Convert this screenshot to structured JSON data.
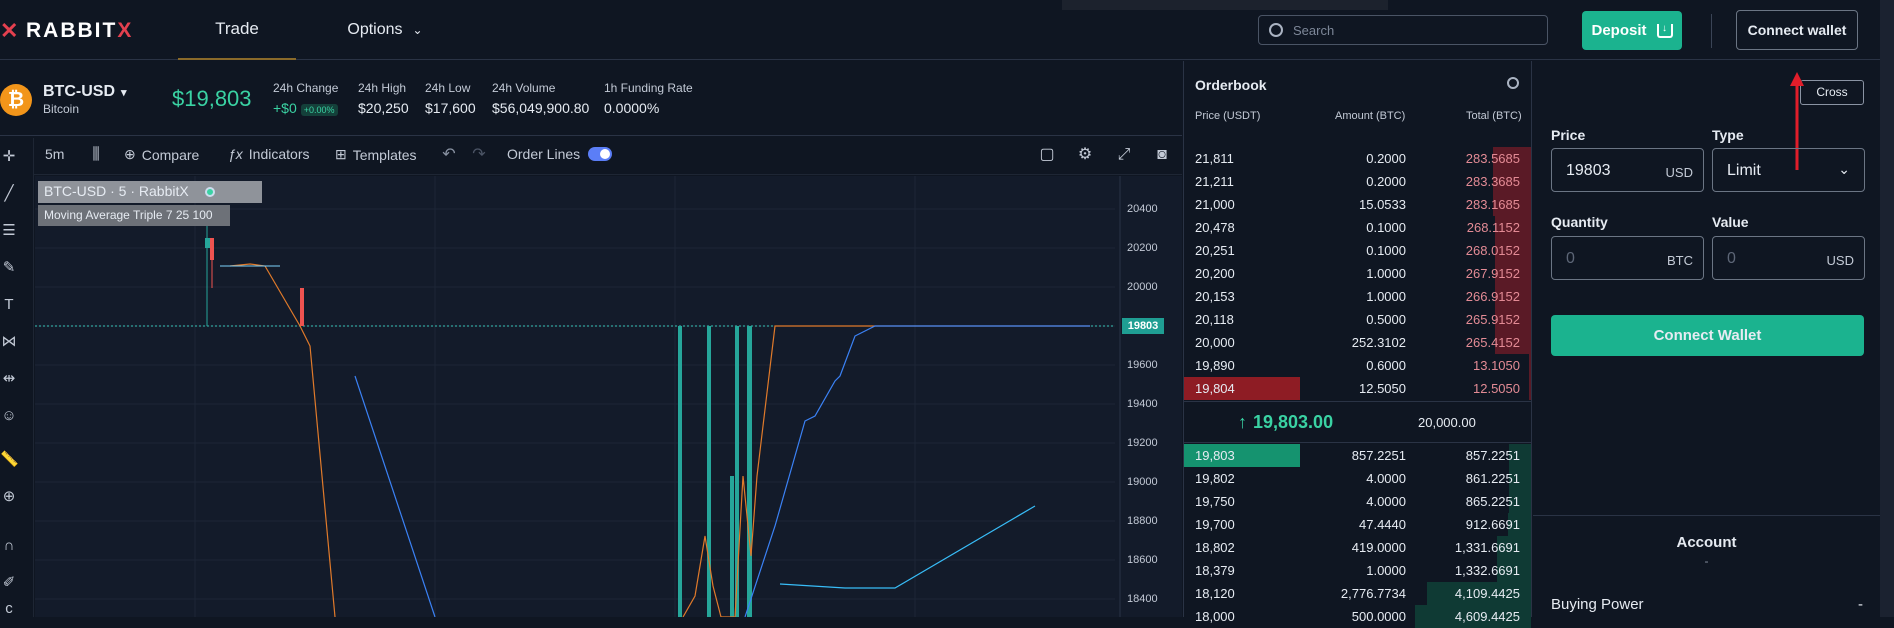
{
  "header": {
    "logo_text_main": "RABBIT",
    "logo_text_x": "X",
    "tabs": [
      {
        "label": "Trade"
      },
      {
        "label": "Options"
      }
    ],
    "search_placeholder": "Search",
    "deposit_label": "Deposit",
    "connect_wallet_label": "Connect wallet"
  },
  "market": {
    "pair": "BTC-USD",
    "pair_name": "Bitcoin",
    "last_price": "$19,803",
    "stats": [
      {
        "label": "24h Change",
        "value": "+$0",
        "badge": "+0.00%"
      },
      {
        "label": "24h High",
        "value": "$20,250"
      },
      {
        "label": "24h Low",
        "value": "$17,600"
      },
      {
        "label": "24h Volume",
        "value": "$56,049,900.80"
      },
      {
        "label": "1h Funding Rate",
        "value": "0.0000%"
      }
    ]
  },
  "chart_toolbar": {
    "interval": "5m",
    "compare": "Compare",
    "indicators": "Indicators",
    "templates": "Templates",
    "order_lines": "Order Lines"
  },
  "chart": {
    "legend_title": "BTC-USD · 5 · RabbitX",
    "legend_indicator": "Moving Average Triple 7 25 100",
    "last_price_tag": "19803",
    "y_ticks": [
      "20400",
      "20200",
      "20000",
      "19800",
      "19600",
      "19400",
      "19200",
      "19000",
      "18800",
      "18600",
      "18400"
    ]
  },
  "chart_data": {
    "type": "line",
    "y_axis_ticks": [
      20400,
      20200,
      20000,
      19800,
      19600,
      19400,
      19200,
      19000,
      18800,
      18600,
      18400
    ],
    "last_price": 19803
  },
  "orderbook": {
    "title": "Orderbook",
    "headers": {
      "price": "Price (USDT)",
      "amount": "Amount (BTC)",
      "total": "Total (BTC)"
    },
    "asks": [
      {
        "price": "21,811",
        "amount": "0.2000",
        "total": "283.5685",
        "depth": 0.33
      },
      {
        "price": "21,211",
        "amount": "0.2000",
        "total": "283.3685",
        "depth": 0.33
      },
      {
        "price": "21,000",
        "amount": "15.0533",
        "total": "283.1685",
        "depth": 0.33
      },
      {
        "price": "20,478",
        "amount": "0.1000",
        "total": "268.1152",
        "depth": 0.31
      },
      {
        "price": "20,251",
        "amount": "0.1000",
        "total": "268.0152",
        "depth": 0.31
      },
      {
        "price": "20,200",
        "amount": "1.0000",
        "total": "267.9152",
        "depth": 0.31
      },
      {
        "price": "20,153",
        "amount": "1.0000",
        "total": "266.9152",
        "depth": 0.31
      },
      {
        "price": "20,118",
        "amount": "0.5000",
        "total": "265.9152",
        "depth": 0.31
      },
      {
        "price": "20,000",
        "amount": "252.3102",
        "total": "265.4152",
        "depth": 0.31
      },
      {
        "price": "19,890",
        "amount": "0.6000",
        "total": "13.1050",
        "depth": 0.015
      },
      {
        "price": "19,804",
        "amount": "12.5050",
        "total": "12.5050",
        "depth": 0.015
      }
    ],
    "mid": {
      "price": "19,803.00",
      "total": "20,000.00"
    },
    "bids": [
      {
        "price": "19,803",
        "amount": "857.2251",
        "total": "857.2251",
        "depth": 0.19
      },
      {
        "price": "19,802",
        "amount": "4.0000",
        "total": "861.2251",
        "depth": 0.19
      },
      {
        "price": "19,750",
        "amount": "4.0000",
        "total": "865.2251",
        "depth": 0.19
      },
      {
        "price": "19,700",
        "amount": "47.4440",
        "total": "912.6691",
        "depth": 0.2
      },
      {
        "price": "18,802",
        "amount": "419.0000",
        "total": "1,331.6691",
        "depth": 0.29
      },
      {
        "price": "18,379",
        "amount": "1.0000",
        "total": "1,332.6691",
        "depth": 0.29
      },
      {
        "price": "18,120",
        "amount": "2,776.7734",
        "total": "4,109.4425",
        "depth": 0.9
      },
      {
        "price": "18,000",
        "amount": "500.0000",
        "total": "4,609.4425",
        "depth": 1.0
      }
    ]
  },
  "order_form": {
    "margin_mode": "Cross",
    "price_label": "Price",
    "price_value": "19803",
    "price_unit": "USD",
    "type_label": "Type",
    "type_value": "Limit",
    "quantity_label": "Quantity",
    "quantity_placeholder": "0",
    "quantity_unit": "BTC",
    "value_label": "Value",
    "value_placeholder": "0",
    "value_unit": "USD",
    "connect_label": "Connect Wallet",
    "account_title": "Account",
    "account_dash": "-",
    "buying_power_label": "Buying Power",
    "buying_power_value": "-"
  },
  "colors": {
    "accent_green": "#1bb38f",
    "ask_red": "#e4404f",
    "bg": "#0f1622"
  }
}
